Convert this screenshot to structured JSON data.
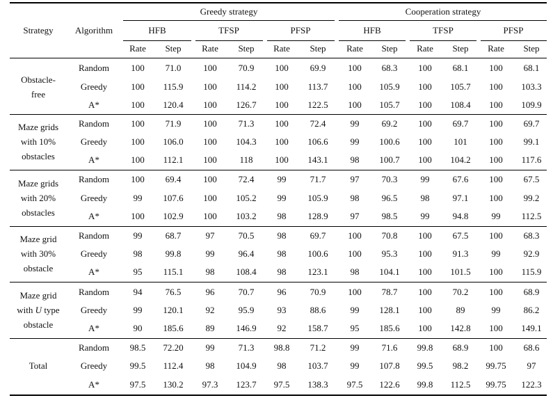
{
  "header": {
    "strategy_label": "Strategy",
    "algorithm_label": "Algorithm",
    "groups": [
      "Greedy strategy",
      "Cooperation strategy"
    ],
    "methods": [
      "HFB",
      "TFSP",
      "PFSP"
    ],
    "metrics": [
      "Rate",
      "Step"
    ]
  },
  "sections": [
    {
      "label_lines": [
        "Obstacle-",
        "free"
      ],
      "rows": [
        {
          "algorithm": "Random",
          "values": [
            "100",
            "71.0",
            "100",
            "70.9",
            "100",
            "69.9",
            "100",
            "68.3",
            "100",
            "68.1",
            "100",
            "68.1"
          ]
        },
        {
          "algorithm": "Greedy",
          "values": [
            "100",
            "115.9",
            "100",
            "114.2",
            "100",
            "113.7",
            "100",
            "105.9",
            "100",
            "105.7",
            "100",
            "103.3"
          ]
        },
        {
          "algorithm": "A*",
          "values": [
            "100",
            "120.4",
            "100",
            "126.7",
            "100",
            "122.5",
            "100",
            "105.7",
            "100",
            "108.4",
            "100",
            "109.9"
          ]
        }
      ]
    },
    {
      "label_lines": [
        "Maze grids",
        "with 10%",
        "obstacles"
      ],
      "rows": [
        {
          "algorithm": "Random",
          "values": [
            "100",
            "71.9",
            "100",
            "71.3",
            "100",
            "72.4",
            "99",
            "69.2",
            "100",
            "69.7",
            "100",
            "69.7"
          ]
        },
        {
          "algorithm": "Greedy",
          "values": [
            "100",
            "106.0",
            "100",
            "104.3",
            "100",
            "106.6",
            "99",
            "100.6",
            "100",
            "101",
            "100",
            "99.1"
          ]
        },
        {
          "algorithm": "A*",
          "values": [
            "100",
            "112.1",
            "100",
            "118",
            "100",
            "143.1",
            "98",
            "100.7",
            "100",
            "104.2",
            "100",
            "117.6"
          ]
        }
      ]
    },
    {
      "label_lines": [
        "Maze grids",
        "with 20%",
        "obstacles"
      ],
      "rows": [
        {
          "algorithm": "Random",
          "values": [
            "100",
            "69.4",
            "100",
            "72.4",
            "99",
            "71.7",
            "97",
            "70.3",
            "99",
            "67.6",
            "100",
            "67.5"
          ]
        },
        {
          "algorithm": "Greedy",
          "values": [
            "99",
            "107.6",
            "100",
            "105.2",
            "99",
            "105.9",
            "98",
            "96.5",
            "98",
            "97.1",
            "100",
            "99.2"
          ]
        },
        {
          "algorithm": "A*",
          "values": [
            "100",
            "102.9",
            "100",
            "103.2",
            "98",
            "128.9",
            "97",
            "98.5",
            "99",
            "94.8",
            "99",
            "112.5"
          ]
        }
      ]
    },
    {
      "label_lines": [
        "Maze grid",
        "with 30%",
        "obstacle"
      ],
      "rows": [
        {
          "algorithm": "Random",
          "values": [
            "99",
            "68.7",
            "97",
            "70.5",
            "98",
            "69.7",
            "100",
            "70.8",
            "100",
            "67.5",
            "100",
            "68.3"
          ]
        },
        {
          "algorithm": "Greedy",
          "values": [
            "98",
            "99.8",
            "99",
            "96.4",
            "98",
            "100.6",
            "100",
            "95.3",
            "100",
            "91.3",
            "99",
            "92.9"
          ]
        },
        {
          "algorithm": "A*",
          "values": [
            "95",
            "115.1",
            "98",
            "108.4",
            "98",
            "123.1",
            "98",
            "104.1",
            "100",
            "101.5",
            "100",
            "115.9"
          ]
        }
      ]
    },
    {
      "label_lines": [
        "Maze grid",
        "with |U| type",
        "obstacle"
      ],
      "rows": [
        {
          "algorithm": "Random",
          "values": [
            "94",
            "76.5",
            "96",
            "70.7",
            "96",
            "70.9",
            "100",
            "78.7",
            "100",
            "70.2",
            "100",
            "68.9"
          ]
        },
        {
          "algorithm": "Greedy",
          "values": [
            "99",
            "120.1",
            "92",
            "95.9",
            "93",
            "88.6",
            "99",
            "128.1",
            "100",
            "89",
            "99",
            "86.2"
          ]
        },
        {
          "algorithm": "A*",
          "values": [
            "90",
            "185.6",
            "89",
            "146.9",
            "92",
            "158.7",
            "95",
            "185.6",
            "100",
            "142.8",
            "100",
            "149.1"
          ]
        }
      ]
    },
    {
      "label_lines": [
        "Total"
      ],
      "rows": [
        {
          "algorithm": "Random",
          "values": [
            "98.5",
            "72.20",
            "99",
            "71.3",
            "98.8",
            "71.2",
            "99",
            "71.6",
            "99.8",
            "68.9",
            "100",
            "68.6"
          ]
        },
        {
          "algorithm": "Greedy",
          "values": [
            "99.5",
            "112.4",
            "98",
            "104.9",
            "98",
            "103.7",
            "99",
            "107.8",
            "99.5",
            "98.2",
            "99.75",
            "97"
          ]
        },
        {
          "algorithm": "A*",
          "values": [
            "97.5",
            "130.2",
            "97.3",
            "123.7",
            "97.5",
            "138.3",
            "97.5",
            "122.6",
            "99.8",
            "112.5",
            "99.75",
            "122.3"
          ]
        }
      ]
    }
  ]
}
